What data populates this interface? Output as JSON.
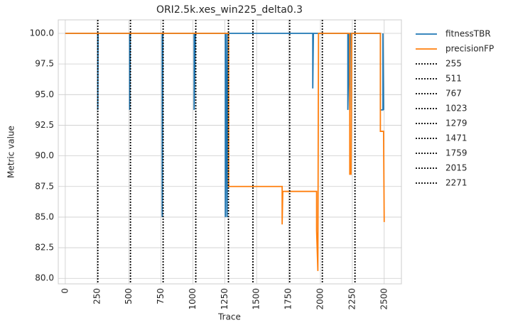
{
  "chart_data": {
    "type": "line",
    "title": "ORI2.5k.xes_win225_delta0.3",
    "x_label": "Trace",
    "y_label": "Metric value",
    "xlim": [
      -55,
      2635
    ],
    "ylim": [
      79.55,
      101.1
    ],
    "xticks": [
      0,
      250,
      500,
      750,
      1000,
      1250,
      1500,
      1750,
      2000,
      2250,
      2500
    ],
    "yticks": [
      {
        "value": 80,
        "label": "80.0"
      },
      82.5,
      {
        "value": 85,
        "label": "85.0"
      },
      87.5,
      {
        "value": 90,
        "label": "90.0"
      },
      92.5,
      {
        "value": 95,
        "label": "95.0"
      },
      97.5,
      {
        "value": 100,
        "label": "100.0"
      }
    ],
    "grid": true,
    "legend": "outside right",
    "series": [
      {
        "name": "fitnessTBR",
        "color": "#1f77b4",
        "x": [
          0,
          255,
          255,
          257,
          505,
          505,
          510,
          760,
          760,
          765,
          1010,
          1010,
          1020,
          1255,
          1255,
          1262,
          1268,
          1275,
          1940,
          1940,
          1945,
          2215,
          2215,
          2225,
          2230,
          2235,
          2470,
          2470,
          2490,
          2490,
          2495
        ],
        "values": [
          100,
          100,
          93.75,
          100,
          100,
          93.75,
          100,
          100,
          85,
          100,
          100,
          93.75,
          100,
          100,
          85,
          100,
          85,
          100,
          100,
          95.5,
          100,
          100,
          93.75,
          100,
          93.75,
          100,
          100,
          93.75,
          93.75,
          100,
          93.75
        ]
      },
      {
        "name": "precisionFP",
        "color": "#ff7f0e",
        "x": [
          0,
          1280,
          1280,
          1700,
          1700,
          1705,
          1970,
          1970,
          1980,
          1985,
          2230,
          2230,
          2240,
          2245,
          2470,
          2470,
          2495,
          2500
        ],
        "values": [
          100,
          100,
          87.5,
          87.5,
          84.4,
          87.1,
          87.1,
          83.9,
          80.6,
          100,
          100,
          88.5,
          88.5,
          100,
          100,
          92,
          92,
          84.6
        ]
      }
    ],
    "vlines": [
      {
        "name": "255",
        "x": 255,
        "color": "#000000"
      },
      {
        "name": "511",
        "x": 511,
        "color": "#000000"
      },
      {
        "name": "767",
        "x": 767,
        "color": "#000000"
      },
      {
        "name": "1023",
        "x": 1023,
        "color": "#000000"
      },
      {
        "name": "1279",
        "x": 1279,
        "color": "#000000"
      },
      {
        "name": "1471",
        "x": 1471,
        "color": "#000000"
      },
      {
        "name": "1759",
        "x": 1759,
        "color": "#000000"
      },
      {
        "name": "2015",
        "x": 2015,
        "color": "#000000"
      },
      {
        "name": "2271",
        "x": 2271,
        "color": "#000000"
      }
    ]
  }
}
